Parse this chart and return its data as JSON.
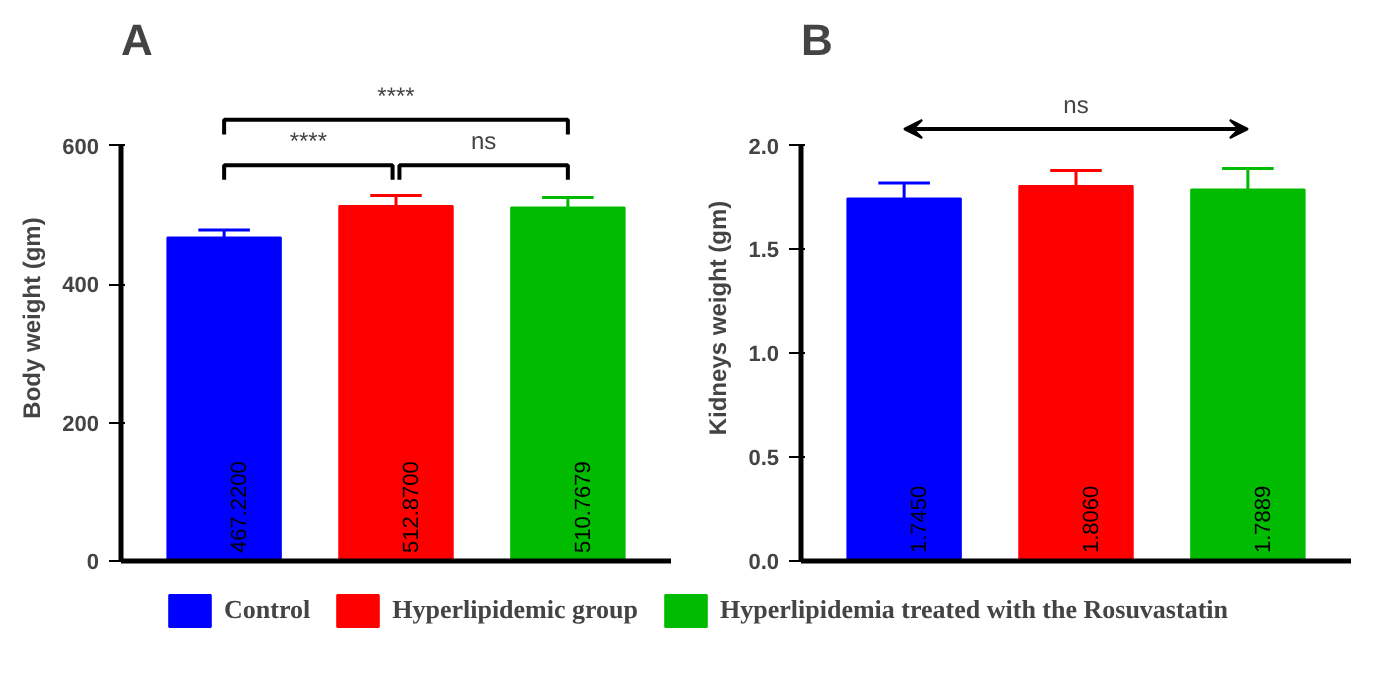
{
  "chart_data": [
    {
      "type": "bar",
      "title": "A",
      "ylabel": "Body weight (gm)",
      "categories": [
        null,
        null,
        null
      ],
      "stacked": true,
      "ylim": [
        0,
        600
      ],
      "yticks": [
        0,
        200,
        400,
        600
      ],
      "grid": false,
      "legend": "bottom",
      "series": [
        {
          "name": "Control",
          "color": "#0000ff",
          "values": [
            467.22,
            null,
            null
          ],
          "errors": [
            [
              467.22,
              478
            ],
            null,
            null
          ],
          "value_labels": [
            "467.2200",
            null,
            null
          ]
        },
        {
          "name": "Hyperlipidemic group",
          "color": "#ff0000",
          "values": [
            null,
            512.87,
            null
          ],
          "errors": [
            null,
            [
              512.87,
              528
            ],
            null
          ],
          "value_labels": [
            null,
            "512.8700",
            null
          ]
        },
        {
          "name": "Hyperlipidemia treated with the Rosuvastatin",
          "color": "#00bb00",
          "values": [
            null,
            null,
            510.7679
          ],
          "errors": [
            null,
            null,
            [
              510.7679,
              525
            ]
          ],
          "value_labels": [
            null,
            null,
            "510.7679"
          ]
        }
      ],
      "annotations": [
        "****",
        "****",
        "ns"
      ]
    },
    {
      "type": "bar",
      "title": "B",
      "ylabel": "Kidneys weight (gm)",
      "categories": [
        null,
        null,
        null
      ],
      "ylim": [
        0,
        2.0
      ],
      "yticks": [
        {
          "value": 0,
          "label": "0.0"
        },
        0.5,
        {
          "value": 1,
          "label": "1.0"
        },
        1.5,
        {
          "value": 2,
          "label": "2.0"
        }
      ],
      "grid": false,
      "values": [
        1.745,
        1.806,
        1.7889
      ],
      "colors": [
        "#0000ff",
        "#ff0000",
        "#00bb00"
      ],
      "errors": [
        [
          1.745,
          1.82
        ],
        [
          1.806,
          1.88
        ],
        [
          1.7889,
          1.89
        ]
      ],
      "value_labels": [
        "1.7450",
        "1.8060",
        "1.7889"
      ],
      "annotations": [
        "ns"
      ]
    }
  ]
}
